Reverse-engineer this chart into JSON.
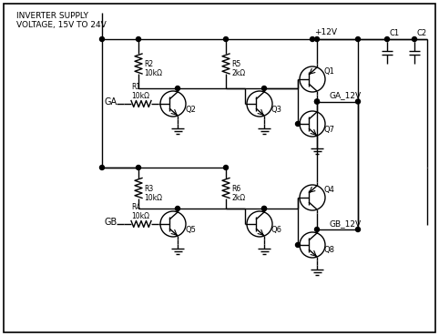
{
  "bg_color": "#ffffff",
  "inverter_label": "INVERTER SUPPLY\nVOLTAGE, 15V TO 24V",
  "vcc_label": "+12V",
  "ga_label": "GA",
  "gb_label": "GB",
  "ga_12v_label": "GA_12V",
  "gb_12v_label": "GB_12V",
  "r1_label": "R1\n10kΩ",
  "r2_label": "R2\n10kΩ",
  "r3_label": "R3\n10kΩ",
  "r4_label": "R4\n10kΩ",
  "r5_label": "R5\n2kΩ",
  "r6_label": "R6\n2kΩ",
  "q1_label": "Q1",
  "q2_label": "Q2",
  "q3_label": "Q3",
  "q4_label": "Q4",
  "q5_label": "Q5",
  "q6_label": "Q6",
  "q7_label": "Q7",
  "q8_label": "Q8",
  "c1_label": "C1",
  "c2_label": "C2"
}
